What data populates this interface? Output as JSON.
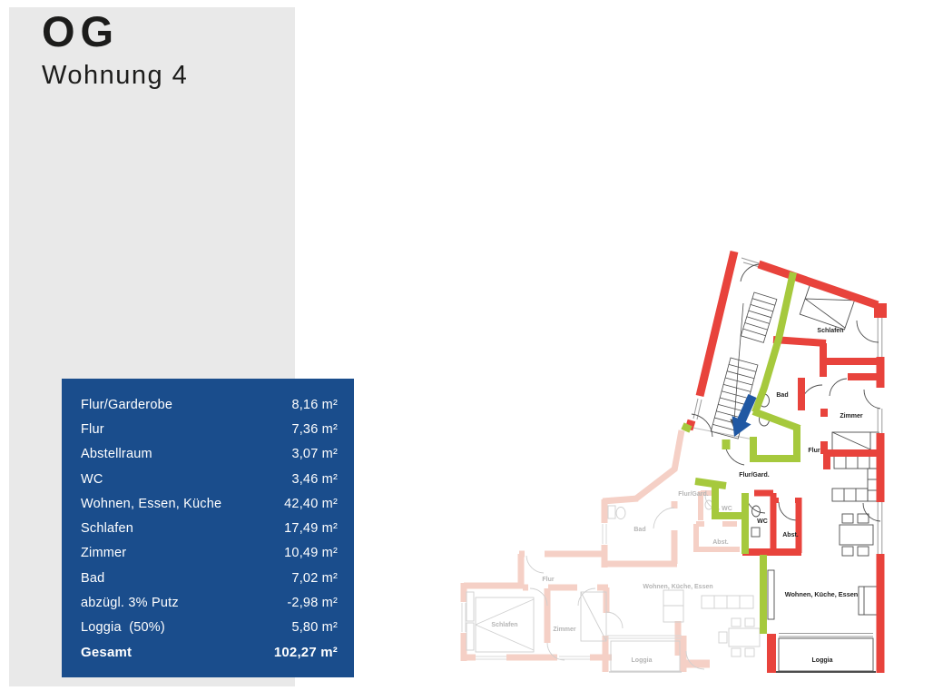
{
  "page": {
    "title": "OG",
    "subtitle": "Wohnung 4"
  },
  "area_table": {
    "rows": [
      {
        "label": "Flur/Garderobe",
        "value": "8,16 m²",
        "bold": false
      },
      {
        "label": "Flur",
        "value": "7,36 m²",
        "bold": false
      },
      {
        "label": "Abstellraum",
        "value": "3,07 m²",
        "bold": false
      },
      {
        "label": "WC",
        "value": "3,46 m²",
        "bold": false
      },
      {
        "label": "Wohnen, Essen, Küche",
        "value": "42,40 m²",
        "bold": false
      },
      {
        "label": "Schlafen",
        "value": "17,49 m²",
        "bold": false
      },
      {
        "label": "Zimmer",
        "value": "10,49 m²",
        "bold": false
      },
      {
        "label": "Bad",
        "value": "7,02 m²",
        "bold": false
      },
      {
        "label": "abzügl. 3% Putz",
        "value": "-2,98 m²",
        "bold": false
      },
      {
        "label": "Loggia  (50%)",
        "value": "5,80 m²",
        "bold": false
      },
      {
        "label": "Gesamt",
        "value": "102,27 m²",
        "bold": true
      }
    ]
  },
  "floorplan": {
    "apartment_labels": [
      "Schlafen",
      "Zimmer",
      "Bad",
      "Flur",
      "Flur/Gard.",
      "WC",
      "Abst.",
      "Wohnen, Küche, Essen",
      "Loggia"
    ],
    "neighbor_labels": [
      "Flur/Gard.",
      "WC",
      "Abst.",
      "Bad",
      "Flur",
      "Schlafen",
      "Zimmer",
      "Wohnen, Küche, Essen",
      "Loggia"
    ],
    "colors": {
      "apartment_wall": "#e8433c",
      "apartment_partition": "#a6c93d",
      "neighbor_wall": "#f5d0c6",
      "entrance_arrow": "#2058a3",
      "table_background": "#1a4d8c"
    }
  }
}
